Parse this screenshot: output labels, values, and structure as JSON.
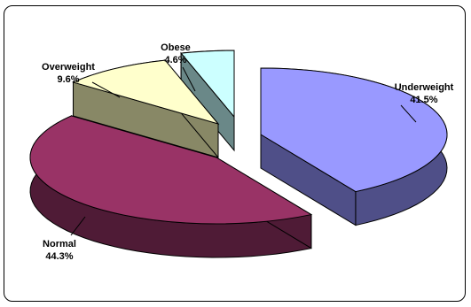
{
  "chart_data": {
    "type": "pie",
    "style": "3d-exploded",
    "title": "",
    "legend": "none",
    "slices": [
      {
        "label": "Underweight",
        "value": 41.5,
        "display": "41.5%",
        "top_color": "#9999FF",
        "side_color": "#4F4F88"
      },
      {
        "label": "Normal",
        "value": 44.3,
        "display": "44.3%",
        "top_color": "#993366",
        "side_color": "#4F1B36"
      },
      {
        "label": "Overweight",
        "value": 9.6,
        "display": "9.6%",
        "top_color": "#FFFFCC",
        "side_color": "#888866"
      },
      {
        "label": "Obese",
        "value": 4.6,
        "display": "4.6%",
        "top_color": "#CCFFFF",
        "side_color": "#6A8888"
      }
    ]
  }
}
